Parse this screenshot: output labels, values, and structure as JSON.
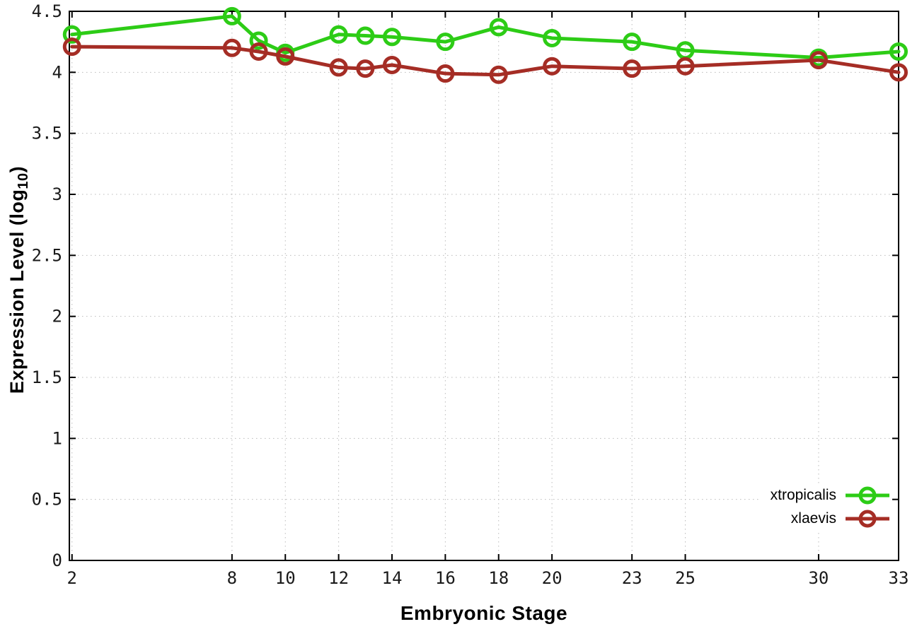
{
  "chart_data": {
    "type": "line",
    "title": "",
    "xlabel": "Embryonic Stage",
    "ylabel": {
      "text": "Expression Level (log10)",
      "prefix": "Expression Level (log",
      "sub": "10",
      "suffix": ")"
    },
    "xlim": [
      1.9,
      33.0
    ],
    "ylim": [
      0,
      4.5
    ],
    "grid": true,
    "legend_position": "inside-bottom-right",
    "x_ticks": [
      2,
      8,
      10,
      12,
      14,
      16,
      18,
      20,
      23,
      25,
      30,
      33
    ],
    "x_tick_labels": [
      "2",
      "8",
      "10",
      "12",
      "14",
      "16",
      "18",
      "20",
      "23",
      "25",
      "30",
      "33"
    ],
    "y_ticks": [
      0,
      0.5,
      1,
      1.5,
      2,
      2.5,
      3,
      3.5,
      4,
      4.5
    ],
    "y_tick_labels": [
      "0",
      "0.5",
      "1",
      "1.5",
      "2",
      "2.5",
      "3",
      "3.5",
      "4",
      "4.5"
    ],
    "x": [
      2,
      8,
      9,
      10,
      12,
      13,
      14,
      16,
      18,
      20,
      23,
      25,
      30,
      33
    ],
    "series": [
      {
        "name": "xtropicalis",
        "color": "#2dcc16",
        "marker": "open-circle",
        "values": [
          4.31,
          4.46,
          4.26,
          4.16,
          4.31,
          4.3,
          4.29,
          4.25,
          4.37,
          4.28,
          4.25,
          4.18,
          4.12,
          4.17
        ]
      },
      {
        "name": "xlaevis",
        "color": "#a52d25",
        "marker": "open-circle",
        "values": [
          4.21,
          4.2,
          4.17,
          4.13,
          4.04,
          4.03,
          4.06,
          3.99,
          3.98,
          4.05,
          4.03,
          4.05,
          4.1,
          4.0
        ]
      }
    ]
  },
  "styles": {
    "grid_color": "#bbbbbb",
    "axis_color": "#000000",
    "tick_label_color": "#1a1a1a"
  }
}
